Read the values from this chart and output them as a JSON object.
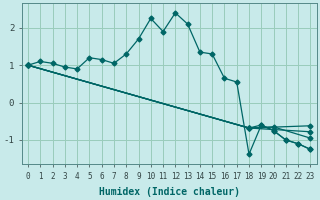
{
  "xlabel": "Humidex (Indice chaleur)",
  "line_color": "#006666",
  "bg_color": "#c8eaea",
  "grid_color": "#99ccbb",
  "xlim": [
    -0.5,
    23.5
  ],
  "ylim": [
    -1.65,
    2.65
  ],
  "yticks": [
    -1,
    0,
    1,
    2
  ],
  "xticks": [
    0,
    1,
    2,
    3,
    4,
    5,
    6,
    7,
    8,
    9,
    10,
    11,
    12,
    13,
    14,
    15,
    16,
    17,
    18,
    19,
    20,
    21,
    22,
    23
  ],
  "main_line": {
    "x": [
      0,
      1,
      2,
      3,
      4,
      5,
      6,
      7,
      8,
      9,
      10,
      11,
      12,
      13,
      14,
      15,
      16,
      17,
      18,
      19,
      20,
      21,
      22,
      23
    ],
    "y": [
      1.0,
      1.1,
      1.05,
      0.95,
      0.9,
      1.2,
      1.15,
      1.05,
      1.3,
      1.7,
      2.25,
      1.9,
      2.4,
      2.1,
      1.35,
      1.3,
      0.65,
      0.55,
      -1.38,
      -0.6,
      -0.75,
      -1.0,
      -1.1,
      -1.25
    ]
  },
  "linear_lines": [
    {
      "x": [
        0,
        18,
        19,
        20,
        21,
        22,
        23
      ],
      "y": [
        1.0,
        -0.68,
        -0.6,
        -0.75,
        -1.0,
        -1.1,
        -1.25
      ]
    },
    {
      "x": [
        0,
        18,
        20,
        23
      ],
      "y": [
        1.0,
        -0.68,
        -0.65,
        -0.95
      ]
    },
    {
      "x": [
        0,
        18,
        23
      ],
      "y": [
        1.0,
        -0.68,
        -0.78
      ]
    },
    {
      "x": [
        0,
        18,
        23
      ],
      "y": [
        1.0,
        -0.68,
        -0.62
      ]
    }
  ],
  "marker": "D",
  "markersize": 2.5,
  "linewidth": 0.9,
  "tick_fontsize": 5.5,
  "xlabel_fontsize": 7
}
